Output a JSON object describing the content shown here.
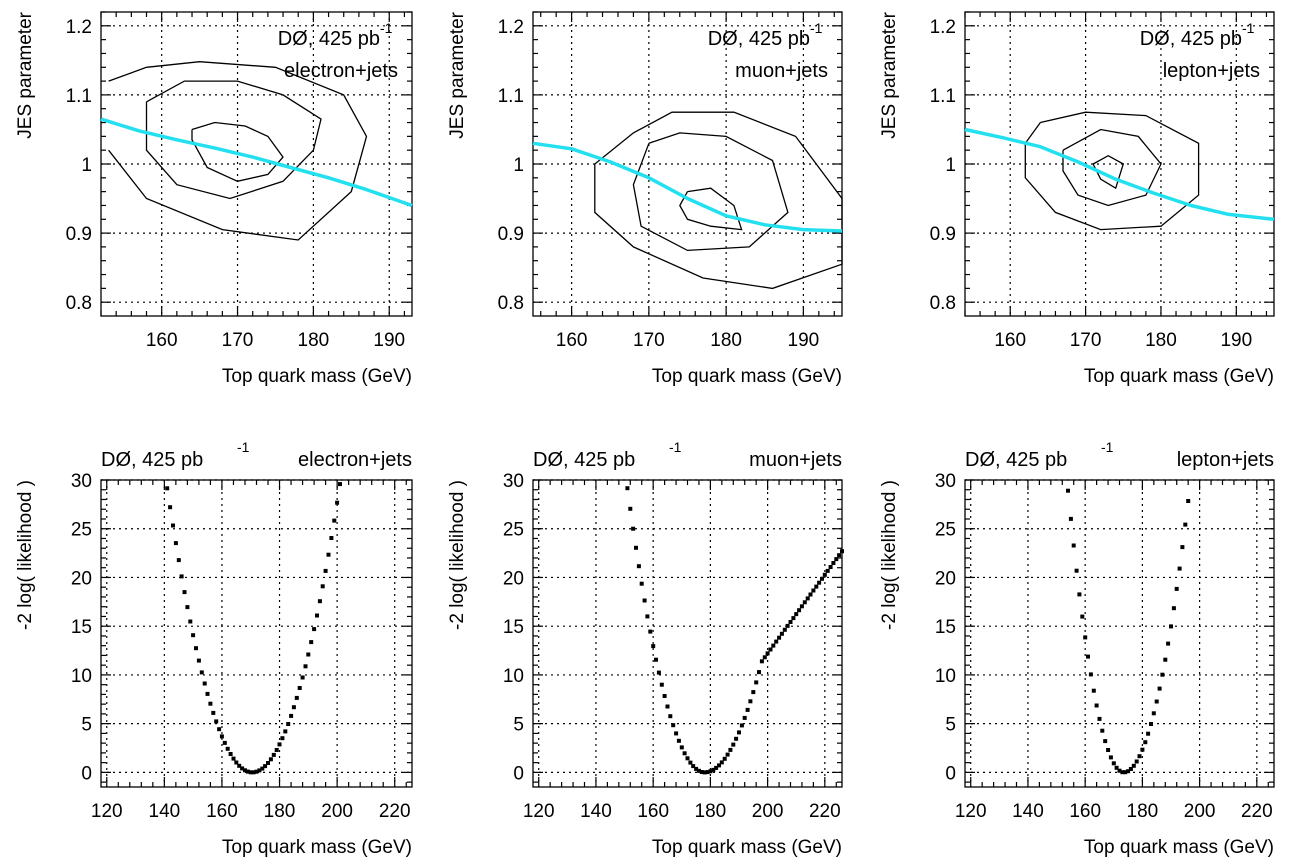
{
  "chart_data": [
    {
      "type": "contour",
      "xlabel": "Top quark mass (GeV)",
      "ylabel": "JES parameter",
      "xlim": [
        152,
        193
      ],
      "ylim": [
        0.78,
        1.22
      ],
      "xticks": [
        160,
        170,
        180,
        190
      ],
      "yticks": [
        0.8,
        0.9,
        1.0,
        1.1,
        1.2
      ],
      "ytick_labels": [
        "0.8",
        "0.9",
        "1",
        "1.1",
        "1.2"
      ],
      "grid": true,
      "annotation_lines": [
        "DØ, 425 pb",
        "electron+jets"
      ],
      "annotation_sup": "-1",
      "contours": [
        [
          [
            164,
            1.05
          ],
          [
            167,
            1.06
          ],
          [
            171,
            1.055
          ],
          [
            174,
            1.04
          ],
          [
            176,
            1.01
          ],
          [
            174,
            0.985
          ],
          [
            170,
            0.975
          ],
          [
            166,
            0.995
          ],
          [
            164,
            1.035
          ],
          [
            164,
            1.05
          ]
        ],
        [
          [
            158,
            1.09
          ],
          [
            163,
            1.12
          ],
          [
            170,
            1.12
          ],
          [
            176,
            1.1
          ],
          [
            181,
            1.065
          ],
          [
            180,
            1.02
          ],
          [
            176,
            0.975
          ],
          [
            169,
            0.95
          ],
          [
            162,
            0.97
          ],
          [
            158,
            1.02
          ],
          [
            158,
            1.09
          ]
        ],
        [
          [
            153,
            1.12
          ],
          [
            158,
            1.14
          ],
          [
            165,
            1.148
          ],
          [
            175,
            1.14
          ],
          [
            184,
            1.1
          ],
          [
            187,
            1.04
          ],
          [
            185,
            0.96
          ],
          [
            178,
            0.89
          ],
          [
            168,
            0.905
          ],
          [
            158,
            0.95
          ],
          [
            153,
            1.02
          ]
        ]
      ],
      "fit_curve": {
        "x": [
          152,
          157,
          162,
          167,
          172,
          177,
          182,
          187,
          193
        ],
        "y": [
          1.065,
          1.048,
          1.035,
          1.023,
          1.01,
          0.995,
          0.98,
          0.963,
          0.94
        ]
      }
    },
    {
      "type": "contour",
      "xlabel": "Top quark mass (GeV)",
      "ylabel": "JES parameter",
      "xlim": [
        155,
        195
      ],
      "ylim": [
        0.78,
        1.22
      ],
      "xticks": [
        160,
        170,
        180,
        190
      ],
      "yticks": [
        0.8,
        0.9,
        1.0,
        1.1,
        1.2
      ],
      "ytick_labels": [
        "0.8",
        "0.9",
        "1",
        "1.1",
        "1.2"
      ],
      "grid": true,
      "annotation_lines": [
        "DØ, 425 pb",
        "muon+jets"
      ],
      "annotation_sup": "-1",
      "contours": [
        [
          [
            175,
            0.96
          ],
          [
            178,
            0.965
          ],
          [
            181,
            0.94
          ],
          [
            182,
            0.905
          ],
          [
            178,
            0.91
          ],
          [
            175,
            0.92
          ],
          [
            174,
            0.94
          ],
          [
            175,
            0.96
          ]
        ],
        [
          [
            170,
            1.03
          ],
          [
            174,
            1.045
          ],
          [
            180,
            1.04
          ],
          [
            186,
            1.005
          ],
          [
            188,
            0.93
          ],
          [
            183,
            0.88
          ],
          [
            175,
            0.875
          ],
          [
            169,
            0.91
          ],
          [
            168,
            0.97
          ],
          [
            170,
            1.03
          ]
        ],
        [
          [
            168,
            1.045
          ],
          [
            173,
            1.075
          ],
          [
            181,
            1.075
          ],
          [
            189,
            1.04
          ],
          [
            195,
            0.95
          ],
          [
            195,
            0.855
          ],
          [
            186,
            0.82
          ],
          [
            177,
            0.835
          ],
          [
            168,
            0.88
          ],
          [
            163,
            0.93
          ],
          [
            163,
            1.0
          ],
          [
            168,
            1.045
          ]
        ]
      ],
      "fit_curve": {
        "x": [
          155,
          160,
          165,
          170,
          175,
          180,
          185,
          190,
          195
        ],
        "y": [
          1.03,
          1.022,
          1.003,
          0.98,
          0.95,
          0.925,
          0.912,
          0.905,
          0.903
        ]
      }
    },
    {
      "type": "contour",
      "xlabel": "Top quark mass (GeV)",
      "ylabel": "JES parameter",
      "xlim": [
        154,
        195
      ],
      "ylim": [
        0.78,
        1.22
      ],
      "xticks": [
        160,
        170,
        180,
        190
      ],
      "yticks": [
        0.8,
        0.9,
        1.0,
        1.1,
        1.2
      ],
      "ytick_labels": [
        "0.8",
        "0.9",
        "1",
        "1.1",
        "1.2"
      ],
      "grid": true,
      "annotation_lines": [
        "DØ, 425 pb",
        "lepton+jets"
      ],
      "annotation_sup": "-1",
      "contours": [
        [
          [
            171,
            1.0
          ],
          [
            173,
            1.012
          ],
          [
            175,
            1.0
          ],
          [
            174,
            0.965
          ],
          [
            172,
            0.978
          ],
          [
            171,
            1.0
          ]
        ],
        [
          [
            167,
            1.02
          ],
          [
            172,
            1.05
          ],
          [
            177,
            1.04
          ],
          [
            180,
            1.0
          ],
          [
            178,
            0.955
          ],
          [
            173,
            0.94
          ],
          [
            169,
            0.955
          ],
          [
            167,
            0.99
          ],
          [
            167,
            1.02
          ]
        ],
        [
          [
            164,
            1.06
          ],
          [
            170,
            1.075
          ],
          [
            178,
            1.07
          ],
          [
            185,
            1.03
          ],
          [
            185,
            0.955
          ],
          [
            180,
            0.91
          ],
          [
            172,
            0.905
          ],
          [
            166,
            0.93
          ],
          [
            162,
            0.98
          ],
          [
            162,
            1.03
          ],
          [
            164,
            1.06
          ]
        ]
      ],
      "fit_curve": {
        "x": [
          154,
          159,
          164,
          169,
          174,
          179,
          184,
          189,
          195
        ],
        "y": [
          1.05,
          1.038,
          1.025,
          1.003,
          0.978,
          0.958,
          0.94,
          0.927,
          0.92
        ]
      }
    },
    {
      "type": "scatter",
      "xlabel": "Top quark mass (GeV)",
      "ylabel": "-2 log( likelihood )",
      "xlim": [
        118,
        226
      ],
      "ylim": [
        -1.5,
        30
      ],
      "xticks": [
        120,
        140,
        160,
        180,
        200,
        220
      ],
      "yticks": [
        0,
        5,
        10,
        15,
        20,
        25,
        30
      ],
      "grid": true,
      "title_left": "DØ, 425 pb",
      "title_sup": "-1",
      "title_right": "electron+jets",
      "curve": {
        "xmin": 140,
        "xmax": 201,
        "step": 1,
        "center": 170.5,
        "a_left": 0.0335,
        "a_right": 0.0318
      }
    },
    {
      "type": "scatter",
      "xlabel": "Top quark mass (GeV)",
      "ylabel": "-2 log( likelihood )",
      "xlim": [
        118,
        226
      ],
      "ylim": [
        -1.5,
        30
      ],
      "xticks": [
        120,
        140,
        160,
        180,
        200,
        220
      ],
      "yticks": [
        0,
        5,
        10,
        15,
        20,
        25,
        30
      ],
      "grid": true,
      "title_left": "DØ, 425 pb",
      "title_sup": "-1",
      "title_right": "muon+jets",
      "curve": {
        "xmin": 151,
        "xmax": 226,
        "step": 1,
        "center": 178,
        "a_left": 0.04,
        "a_right": 0.0285,
        "a_right_far": 0.018,
        "knee": 198
      }
    },
    {
      "type": "scatter",
      "xlabel": "Top quark mass (GeV)",
      "ylabel": "-2 log( likelihood )",
      "xlim": [
        118,
        226
      ],
      "ylim": [
        -1.5,
        30
      ],
      "xticks": [
        120,
        140,
        160,
        180,
        200,
        220
      ],
      "yticks": [
        0,
        5,
        10,
        15,
        20,
        25,
        30
      ],
      "grid": true,
      "title_left": "DØ, 425 pb",
      "title_sup": "-1",
      "title_right": "lepton+jets",
      "curve": {
        "xmin": 154,
        "xmax": 196,
        "step": 1,
        "center": 173.5,
        "a_left": 0.076,
        "a_right": 0.055
      }
    }
  ]
}
